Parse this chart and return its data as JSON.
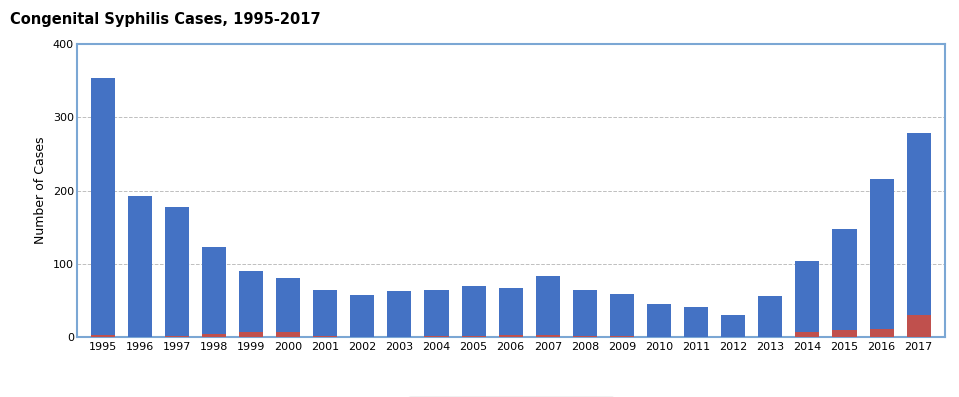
{
  "title": "Congenital Syphilis Cases, 1995-2017",
  "ylabel": "Number of Cases",
  "years": [
    1995,
    1996,
    1997,
    1998,
    1999,
    2000,
    2001,
    2002,
    2003,
    2004,
    2005,
    2006,
    2007,
    2008,
    2009,
    2010,
    2011,
    2012,
    2013,
    2014,
    2015,
    2016,
    2017
  ],
  "live_births": [
    350,
    191,
    176,
    118,
    82,
    73,
    63,
    57,
    62,
    62,
    68,
    65,
    80,
    63,
    57,
    44,
    41,
    30,
    55,
    97,
    138,
    204,
    248
  ],
  "stillbirths": [
    3,
    1,
    2,
    5,
    8,
    8,
    2,
    1,
    1,
    2,
    2,
    3,
    4,
    2,
    2,
    1,
    1,
    1,
    1,
    7,
    10,
    12,
    30
  ],
  "live_births_color": "#4472C4",
  "stillbirths_color": "#C0504D",
  "background_color": "#FFFFFF",
  "plot_bg_color": "#FFFFFF",
  "ylim": [
    0,
    400
  ],
  "yticks": [
    0,
    100,
    200,
    300,
    400
  ],
  "grid_color": "#BFBFBF",
  "title_fontsize": 10.5,
  "axis_label_fontsize": 9,
  "tick_fontsize": 8,
  "legend_fontsize": 9,
  "border_color": "#7BA7D4",
  "bar_width": 0.65
}
